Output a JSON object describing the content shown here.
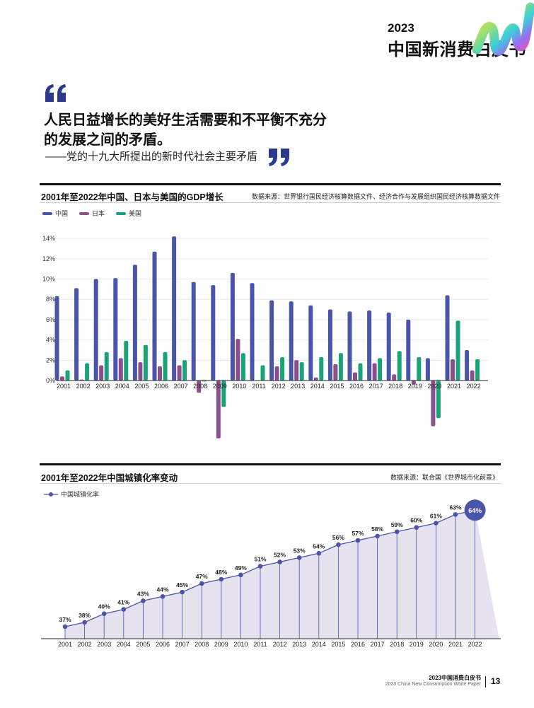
{
  "header": {
    "year": "2023",
    "title": "中国新消费白皮书"
  },
  "quote": {
    "text": "人民日益增长的美好生活需要和不平衡不充分的发展之间的矛盾。",
    "source": "——党的十九大所提出的新时代社会主要矛盾"
  },
  "colors": {
    "china": "#4a54a8",
    "japan": "#8b4e8f",
    "usa": "#1aa37a",
    "urban_line": "#4a54a8",
    "urban_fill": "#e7e2ef"
  },
  "chart_data": [
    {
      "type": "bar",
      "title": "2001年至2022年中国、日本与美国的GDP增长",
      "source": "数据来源：世界银行国民经济核算数据文件、经济合作与发展组织国民经济核算数据文件",
      "categories": [
        "2001",
        "2002",
        "2003",
        "2004",
        "2005",
        "2006",
        "2007",
        "2008",
        "2009",
        "2010",
        "2011",
        "2012",
        "2013",
        "2014",
        "2015",
        "2016",
        "2017",
        "2018",
        "2019",
        "2020",
        "2021",
        "2022"
      ],
      "series": [
        {
          "name": "中国",
          "values": [
            8.3,
            9.1,
            10.0,
            10.1,
            11.4,
            12.7,
            14.2,
            9.7,
            9.4,
            10.6,
            9.6,
            7.9,
            7.8,
            7.4,
            7.0,
            6.8,
            6.9,
            6.7,
            6.0,
            2.2,
            8.4,
            3.0
          ]
        },
        {
          "name": "日本",
          "values": [
            0.4,
            0.1,
            1.5,
            2.2,
            1.8,
            1.4,
            1.5,
            -1.2,
            -5.7,
            4.1,
            0.0,
            1.4,
            2.0,
            0.3,
            1.6,
            0.8,
            1.7,
            0.6,
            -0.4,
            -4.5,
            2.1,
            1.0
          ]
        },
        {
          "name": "美国",
          "values": [
            1.0,
            1.7,
            2.8,
            3.9,
            3.5,
            2.8,
            2.0,
            -0.1,
            -2.6,
            2.7,
            1.5,
            2.3,
            1.8,
            2.3,
            2.7,
            1.7,
            2.2,
            2.9,
            2.3,
            -3.7,
            5.9,
            2.1
          ]
        }
      ],
      "y_ticks": [
        "0%",
        "2%",
        "4%",
        "6%",
        "8%",
        "10%",
        "12%",
        "14%"
      ],
      "ylim": [
        -6.5,
        14.5
      ],
      "legend": "top-left"
    },
    {
      "type": "area",
      "title": "2001年至2022年中国城镇化率变动",
      "source": "数据来源：联合国《世界城市化前景》",
      "series_name": "中国城镇化率",
      "categories": [
        "2001",
        "2002",
        "2003",
        "2004",
        "2005",
        "2006",
        "2007",
        "2008",
        "2009",
        "2010",
        "2011",
        "2012",
        "2013",
        "2014",
        "2015",
        "2016",
        "2017",
        "2018",
        "2019",
        "2020",
        "2021",
        "2022"
      ],
      "values": [
        37,
        38,
        40,
        41,
        43,
        44,
        45,
        47,
        48,
        49,
        51,
        52,
        53,
        54,
        56,
        57,
        58,
        59,
        60,
        61,
        63,
        64
      ],
      "value_labels": [
        "37%",
        "38%",
        "40%",
        "41%",
        "43%",
        "44%",
        "45%",
        "47%",
        "48%",
        "49%",
        "51%",
        "52%",
        "53%",
        "54%",
        "56%",
        "57%",
        "58%",
        "59%",
        "60%",
        "61%",
        "63%",
        "64%"
      ],
      "legend": "top-left"
    }
  ],
  "footer": {
    "title": "2023中国消费白皮书",
    "subtitle": "2023 China New Consumption White Paper",
    "page": "13"
  }
}
